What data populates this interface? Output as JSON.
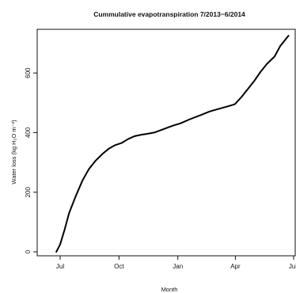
{
  "chart_data": {
    "type": "line",
    "title": "Cummulative evapotranspiration 7/2013−6/2014",
    "xlabel": "Month",
    "ylabel": "Water loss (kg H₂O m⁻²)",
    "x_tick_labels": [
      "Jul",
      "Oct",
      "Jan",
      "Apr",
      "Jul"
    ],
    "y_ticks": [
      0,
      200,
      400,
      600
    ],
    "ylim": [
      0,
      720
    ],
    "x": [
      "2013-06-25",
      "2013-07-01",
      "2013-07-08",
      "2013-07-15",
      "2013-07-25",
      "2013-08-05",
      "2013-08-15",
      "2013-08-25",
      "2013-09-05",
      "2013-09-15",
      "2013-09-25",
      "2013-10-05",
      "2013-10-15",
      "2013-10-25",
      "2013-11-05",
      "2013-11-15",
      "2013-11-25",
      "2013-12-05",
      "2013-12-15",
      "2013-12-25",
      "2014-01-05",
      "2014-01-20",
      "2014-02-05",
      "2014-02-20",
      "2014-03-05",
      "2014-03-20",
      "2014-03-31",
      "2014-04-10",
      "2014-04-20",
      "2014-05-01",
      "2014-05-10",
      "2014-05-20",
      "2014-06-01",
      "2014-06-10",
      "2014-06-23"
    ],
    "y": [
      0,
      25,
      75,
      130,
      185,
      240,
      278,
      305,
      328,
      346,
      358,
      365,
      378,
      388,
      393,
      396,
      400,
      408,
      416,
      424,
      431,
      445,
      458,
      471,
      479,
      488,
      495,
      518,
      545,
      575,
      603,
      630,
      655,
      690,
      725
    ]
  }
}
